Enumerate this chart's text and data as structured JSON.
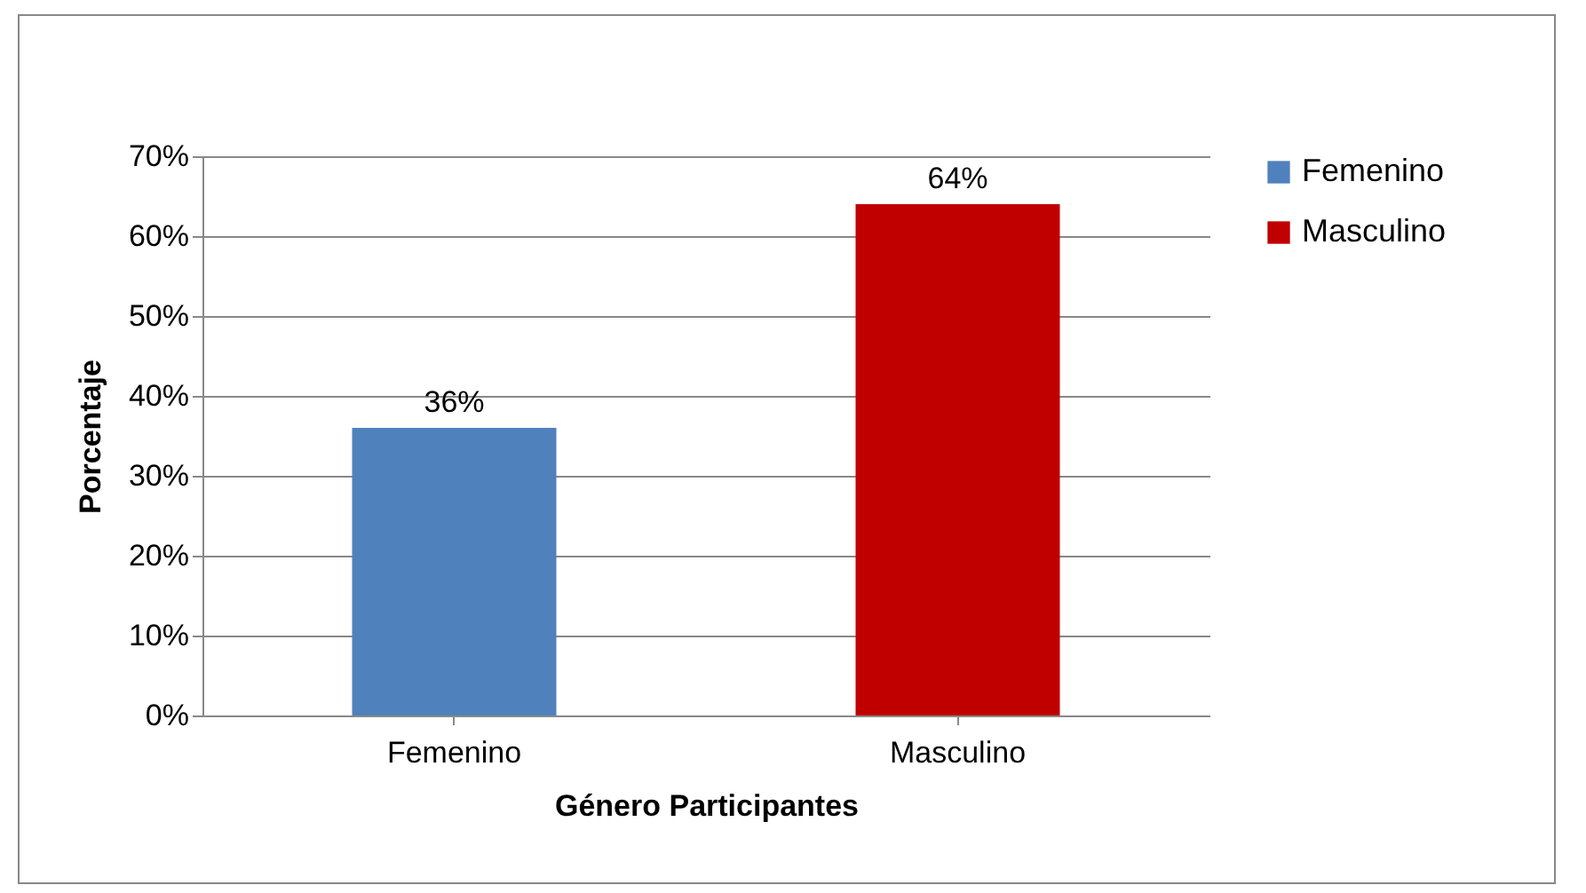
{
  "chart_data": {
    "type": "bar",
    "xlabel": "Género Participantes",
    "ylabel": "Porcentaje",
    "categories": [
      "Femenino",
      "Masculino"
    ],
    "series": [
      {
        "name": "Femenino",
        "color": "#4f81bd",
        "values": [
          36,
          null
        ],
        "value_labels": [
          "36%",
          null
        ]
      },
      {
        "name": "Masculino",
        "color": "#c00000",
        "values": [
          null,
          64
        ],
        "value_labels": [
          null,
          "64%"
        ]
      }
    ],
    "ylim": [
      0,
      70
    ],
    "yticks": [
      {
        "value": 0,
        "label": "0%"
      },
      {
        "value": 10,
        "label": "10%"
      },
      {
        "value": 20,
        "label": "20%"
      },
      {
        "value": 30,
        "label": "30%"
      },
      {
        "value": 40,
        "label": "40%"
      },
      {
        "value": 50,
        "label": "50%"
      },
      {
        "value": 60,
        "label": "60%"
      },
      {
        "value": 70,
        "label": "70%"
      }
    ],
    "grid": "y",
    "legend": "right"
  }
}
